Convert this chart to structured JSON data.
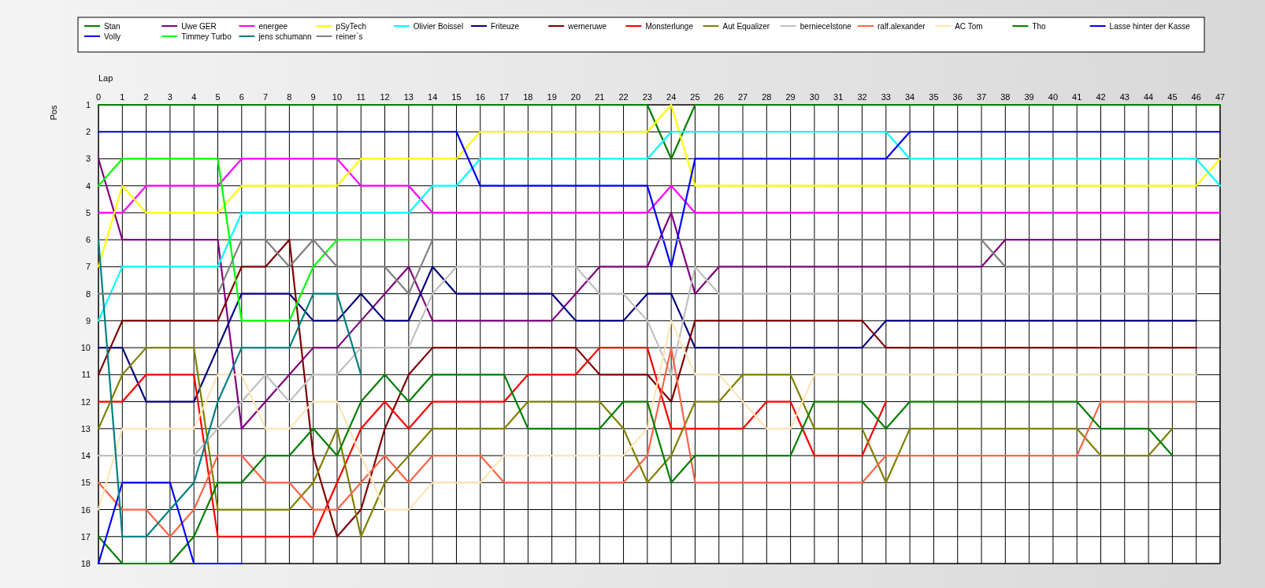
{
  "chart_data": {
    "type": "line",
    "xlabel": "Lap",
    "ylabel": "Pos",
    "x": [
      0,
      1,
      2,
      3,
      4,
      5,
      6,
      7,
      8,
      9,
      10,
      11,
      12,
      13,
      14,
      15,
      16,
      17,
      18,
      19,
      20,
      21,
      22,
      23,
      24,
      25,
      26,
      27,
      28,
      29,
      30,
      31,
      32,
      33,
      34,
      35,
      36,
      37,
      38,
      39,
      40,
      41,
      42,
      43,
      44,
      45,
      46,
      47
    ],
    "xlim": [
      0,
      47
    ],
    "xticks": [
      0,
      1,
      2,
      3,
      4,
      5,
      6,
      7,
      8,
      9,
      10,
      11,
      12,
      13,
      14,
      15,
      16,
      17,
      18,
      19,
      20,
      21,
      22,
      23,
      24,
      25,
      26,
      27,
      28,
      29,
      30,
      31,
      32,
      33,
      34,
      35,
      36,
      37,
      38,
      39,
      40,
      41,
      42,
      43,
      44,
      45,
      46,
      47
    ],
    "ylim": [
      18,
      1
    ],
    "yticks": [
      1,
      2,
      3,
      4,
      5,
      6,
      7,
      8,
      9,
      10,
      11,
      12,
      13,
      14,
      15,
      16,
      17,
      18
    ],
    "grid": true,
    "legend": "top",
    "marker": "none",
    "line_style": "solid",
    "series": [
      {
        "name": "Stan",
        "color": "#008000",
        "values": [
          1,
          1,
          1,
          1,
          1,
          1,
          1,
          1,
          1,
          1,
          1,
          1,
          1,
          1,
          1,
          1,
          1,
          1,
          1,
          1,
          1,
          1,
          1,
          1,
          3,
          1,
          1,
          1,
          1,
          1,
          1,
          1,
          1,
          1,
          1,
          1,
          1,
          1,
          1,
          1,
          1,
          1,
          1,
          1,
          1,
          1,
          1,
          1
        ]
      },
      {
        "name": "Uwe GER",
        "color": "#800080",
        "values": [
          3,
          6,
          6,
          6,
          6,
          6,
          13,
          12,
          11,
          10,
          10,
          9,
          8,
          7,
          9,
          9,
          9,
          9,
          9,
          9,
          8,
          7,
          7,
          7,
          5,
          8,
          7,
          7,
          7,
          7,
          7,
          7,
          7,
          7,
          7,
          7,
          7,
          7,
          6,
          6,
          6,
          6,
          6,
          6,
          6,
          6,
          6,
          6
        ]
      },
      {
        "name": "energee",
        "color": "#ff00ff",
        "values": [
          5,
          5,
          4,
          4,
          4,
          4,
          3,
          3,
          3,
          3,
          3,
          4,
          4,
          4,
          5,
          5,
          5,
          5,
          5,
          5,
          5,
          5,
          5,
          5,
          4,
          5,
          5,
          5,
          5,
          5,
          5,
          5,
          5,
          5,
          5,
          5,
          5,
          5,
          5,
          5,
          5,
          5,
          5,
          5,
          5,
          5,
          5,
          5
        ]
      },
      {
        "name": "pSyTech",
        "color": "#ffff00",
        "values": [
          7,
          4,
          5,
          5,
          5,
          5,
          4,
          4,
          4,
          4,
          4,
          3,
          3,
          3,
          3,
          3,
          2,
          2,
          2,
          2,
          2,
          2,
          2,
          2,
          1,
          4,
          4,
          4,
          4,
          4,
          4,
          4,
          4,
          4,
          4,
          4,
          4,
          4,
          4,
          4,
          4,
          4,
          4,
          4,
          4,
          4,
          4,
          3
        ]
      },
      {
        "name": "Olivier Boissel",
        "color": "#00ffff",
        "values": [
          9,
          7,
          7,
          7,
          7,
          7,
          5,
          5,
          5,
          5,
          5,
          5,
          5,
          5,
          4,
          4,
          3,
          3,
          3,
          3,
          3,
          3,
          3,
          3,
          2,
          2,
          2,
          2,
          2,
          2,
          2,
          2,
          2,
          2,
          3,
          3,
          3,
          3,
          3,
          3,
          3,
          3,
          3,
          3,
          3,
          3,
          3,
          4
        ]
      },
      {
        "name": "Friteuze",
        "color": "#000080",
        "values": [
          10,
          10,
          12,
          12,
          12,
          10,
          8,
          8,
          8,
          9,
          9,
          8,
          9,
          9,
          7,
          8,
          8,
          8,
          8,
          8,
          9,
          9,
          9,
          8,
          8,
          10,
          10,
          10,
          10,
          10,
          10,
          10,
          10,
          9,
          9,
          9,
          9,
          9,
          9,
          9,
          9,
          9,
          9,
          9,
          9,
          9,
          9,
          null
        ]
      },
      {
        "name": "werneruwe",
        "color": "#800000",
        "values": [
          11,
          9,
          9,
          9,
          9,
          9,
          7,
          7,
          6,
          14,
          17,
          16,
          13,
          11,
          10,
          10,
          10,
          10,
          10,
          10,
          10,
          11,
          11,
          11,
          12,
          9,
          9,
          9,
          9,
          9,
          9,
          9,
          9,
          10,
          10,
          10,
          10,
          10,
          10,
          10,
          10,
          10,
          10,
          10,
          10,
          10,
          10,
          null
        ]
      },
      {
        "name": "Monsterlunge",
        "color": "#ff0000",
        "values": [
          12,
          12,
          11,
          11,
          11,
          17,
          17,
          17,
          17,
          17,
          15,
          13,
          12,
          13,
          12,
          12,
          12,
          12,
          11,
          11,
          11,
          10,
          10,
          10,
          13,
          13,
          13,
          13,
          12,
          12,
          14,
          14,
          14,
          12,
          null,
          null,
          null,
          null,
          null,
          null,
          null,
          null,
          null,
          null,
          null,
          null,
          null,
          null
        ]
      },
      {
        "name": "Aut Equalizer",
        "color": "#808000",
        "values": [
          13,
          11,
          10,
          10,
          10,
          16,
          16,
          16,
          16,
          15,
          13,
          17,
          15,
          14,
          13,
          13,
          13,
          13,
          12,
          12,
          12,
          12,
          13,
          15,
          14,
          12,
          12,
          11,
          11,
          11,
          13,
          13,
          13,
          15,
          13,
          13,
          13,
          13,
          13,
          13,
          13,
          13,
          14,
          14,
          14,
          13,
          null,
          null
        ]
      },
      {
        "name": "berniecelstone",
        "color": "#c0c0c0",
        "values": [
          14,
          14,
          14,
          14,
          14,
          13,
          12,
          11,
          12,
          11,
          11,
          10,
          10,
          10,
          8,
          7,
          7,
          7,
          7,
          7,
          7,
          8,
          8,
          9,
          11,
          7,
          8,
          8,
          8,
          8,
          8,
          8,
          8,
          8,
          8,
          8,
          8,
          8,
          8,
          8,
          8,
          8,
          8,
          8,
          8,
          8,
          8,
          null
        ]
      },
      {
        "name": "ralf.alexander",
        "color": "#ff6347",
        "values": [
          15,
          16,
          16,
          17,
          16,
          14,
          14,
          15,
          15,
          16,
          16,
          15,
          14,
          15,
          14,
          14,
          14,
          15,
          15,
          15,
          15,
          15,
          15,
          14,
          10,
          15,
          15,
          15,
          15,
          15,
          15,
          15,
          15,
          14,
          14,
          14,
          14,
          14,
          14,
          14,
          14,
          14,
          12,
          12,
          12,
          12,
          12,
          null
        ]
      },
      {
        "name": "AC Tom",
        "color": "#ffe4b5",
        "values": [
          16,
          13,
          13,
          13,
          13,
          11,
          11,
          13,
          13,
          12,
          12,
          14,
          16,
          16,
          15,
          15,
          15,
          14,
          14,
          14,
          14,
          14,
          14,
          13,
          9,
          11,
          11,
          12,
          13,
          13,
          11,
          11,
          11,
          11,
          11,
          11,
          11,
          11,
          11,
          11,
          11,
          11,
          11,
          11,
          11,
          11,
          11,
          null
        ]
      },
      {
        "name": "Tho",
        "color": "#008000",
        "values": [
          17,
          18,
          18,
          18,
          17,
          15,
          15,
          14,
          14,
          13,
          14,
          12,
          11,
          12,
          11,
          11,
          11,
          11,
          13,
          13,
          13,
          13,
          12,
          12,
          15,
          14,
          14,
          14,
          14,
          14,
          12,
          12,
          12,
          13,
          12,
          12,
          12,
          12,
          12,
          12,
          12,
          12,
          13,
          13,
          13,
          14,
          null,
          null
        ]
      },
      {
        "name": "Lasse hinter der Kasse",
        "color": "#0000ff",
        "values": [
          2,
          2,
          2,
          2,
          2,
          2,
          2,
          2,
          2,
          2,
          2,
          2,
          2,
          2,
          2,
          2,
          4,
          4,
          4,
          4,
          4,
          4,
          4,
          4,
          7,
          3,
          3,
          3,
          3,
          3,
          3,
          3,
          3,
          3,
          2,
          2,
          2,
          2,
          2,
          2,
          2,
          2,
          2,
          2,
          2,
          2,
          2,
          2
        ]
      },
      {
        "name": "Volly",
        "color": "#0000ff",
        "values": [
          18,
          15,
          15,
          15,
          18,
          18,
          18,
          null,
          null,
          null,
          null,
          null,
          null,
          null,
          null,
          null,
          null,
          null,
          null,
          null,
          null,
          null,
          null,
          null,
          null,
          null,
          null,
          null,
          null,
          null,
          null,
          null,
          null,
          null,
          null,
          null,
          null,
          null,
          null,
          null,
          null,
          null,
          null,
          null,
          null,
          null,
          null,
          null
        ]
      },
      {
        "name": "Timmey Turbo",
        "color": "#00ff00",
        "values": [
          4,
          3,
          3,
          3,
          3,
          3,
          9,
          9,
          9,
          7,
          6,
          6,
          6,
          6,
          null,
          null,
          null,
          null,
          null,
          null,
          null,
          null,
          null,
          null,
          null,
          null,
          null,
          null,
          null,
          null,
          null,
          null,
          null,
          null,
          null,
          null,
          null,
          null,
          null,
          null,
          null,
          null,
          null,
          null,
          null,
          null,
          null,
          null
        ]
      },
      {
        "name": "jens  schumann",
        "color": "#008080",
        "values": [
          6,
          17,
          17,
          16,
          15,
          12,
          10,
          10,
          10,
          8,
          8,
          11,
          null,
          null,
          null,
          null,
          null,
          null,
          null,
          null,
          null,
          null,
          null,
          null,
          null,
          null,
          null,
          null,
          null,
          null,
          null,
          null,
          null,
          null,
          null,
          null,
          null,
          null,
          null,
          null,
          null,
          null,
          null,
          null,
          null,
          null,
          null,
          null
        ]
      },
      {
        "name": "reiner`s",
        "color": "#808080",
        "values": [
          8,
          8,
          8,
          8,
          8,
          8,
          6,
          6,
          7,
          6,
          7,
          7,
          7,
          8,
          6,
          6,
          6,
          6,
          6,
          6,
          6,
          6,
          6,
          6,
          6,
          6,
          6,
          6,
          6,
          6,
          6,
          6,
          6,
          6,
          6,
          6,
          6,
          6,
          7,
          7,
          7,
          7,
          7,
          7,
          7,
          7,
          7,
          7
        ]
      }
    ]
  }
}
